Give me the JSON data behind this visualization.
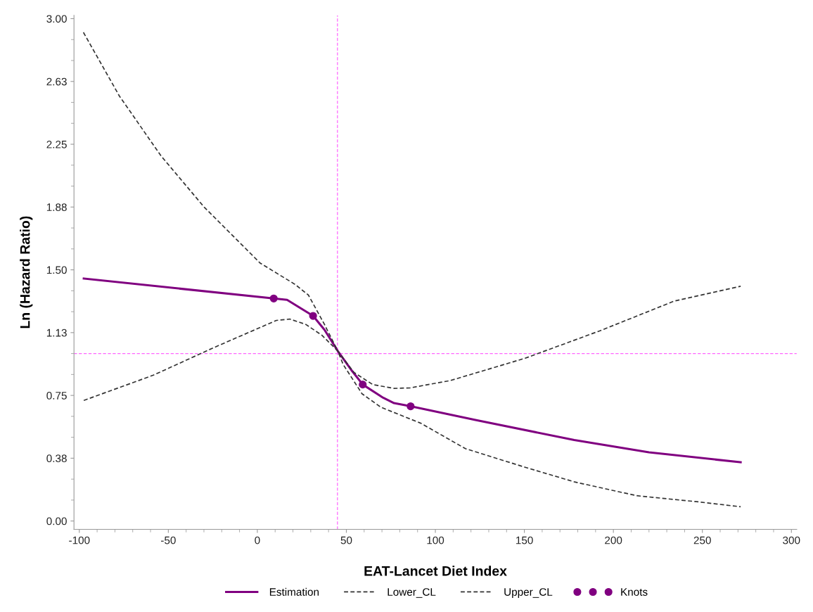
{
  "chart_data": {
    "type": "line",
    "xlabel": "EAT-Lancet Diet Index",
    "ylabel": "Ln (Hazard Ratio)",
    "xlim": [
      -103,
      303
    ],
    "xticks": [
      -100,
      -50,
      0,
      50,
      100,
      150,
      200,
      250,
      300
    ],
    "ylim": [
      -0.05,
      3.02
    ],
    "yticks": [
      {
        "value": 0,
        "label": "0.00"
      },
      {
        "value": 0.375,
        "label": "0.38"
      },
      {
        "value": 0.75,
        "label": "0.75"
      },
      {
        "value": 1.125,
        "label": "1.13"
      },
      {
        "value": 1.5,
        "label": "1.50"
      },
      {
        "value": 1.875,
        "label": "1.88"
      },
      {
        "value": 2.25,
        "label": "2.25"
      },
      {
        "value": 2.625,
        "label": "2.63"
      },
      {
        "value": 3.0,
        "label": "3.00"
      }
    ],
    "grid": false,
    "legend": "bottom",
    "ref_lines": [
      {
        "axis": "x",
        "value": 45,
        "color": "#ff66ff",
        "line_style": "dashed"
      },
      {
        "axis": "y",
        "value": 1.0,
        "color": "#ff66ff",
        "line_style": "dashed"
      }
    ],
    "series": [
      {
        "name": "Estimation",
        "color": "#800080",
        "line_style": "solid",
        "marker": "none",
        "x": [
          -97.5,
          9.2,
          16.7,
          31.3,
          37.7,
          45.2,
          52.7,
          59.2,
          70.7,
          76.8,
          86.1,
          122.5,
          178,
          220,
          271.5
        ],
        "values": [
          1.448,
          1.329,
          1.321,
          1.225,
          1.142,
          1.015,
          0.903,
          0.815,
          0.736,
          0.704,
          0.685,
          0.603,
          0.484,
          0.41,
          0.351
        ]
      },
      {
        "name": "Lower_CL",
        "color": "#333333",
        "line_style": "dashed",
        "marker": "none",
        "x": [
          -97.5,
          -58.4,
          -25.4,
          10.7,
          18.2,
          27.2,
          36.2,
          45.2,
          48.2,
          58.8,
          69.3,
          91.8,
          116.9,
          150.4,
          178.3,
          213.2,
          248,
          271.5
        ],
        "values": [
          0.72,
          0.871,
          1.031,
          1.198,
          1.206,
          1.174,
          1.11,
          1.015,
          0.935,
          0.76,
          0.68,
          0.584,
          0.432,
          0.321,
          0.233,
          0.151,
          0.114,
          0.085
        ]
      },
      {
        "name": "Upper_CL",
        "color": "#333333",
        "line_style": "dashed",
        "marker": "none",
        "x": [
          -97.7,
          -77.5,
          -54,
          -29.9,
          1.6,
          21.2,
          28.7,
          37.7,
          45.2,
          54.3,
          64.8,
          76.8,
          85.8,
          108.5,
          150.4,
          192.2,
          234.1,
          271.5
        ],
        "values": [
          2.918,
          2.538,
          2.179,
          1.875,
          1.54,
          1.413,
          1.349,
          1.174,
          1.015,
          0.887,
          0.815,
          0.792,
          0.795,
          0.839,
          0.972,
          1.135,
          1.313,
          1.402
        ]
      },
      {
        "name": "Knots",
        "type": "scatter",
        "color": "#800080",
        "marker": "circle",
        "x": [
          9.2,
          31.3,
          59.2,
          86.1
        ],
        "values": [
          1.329,
          1.225,
          0.815,
          0.685
        ]
      }
    ]
  }
}
